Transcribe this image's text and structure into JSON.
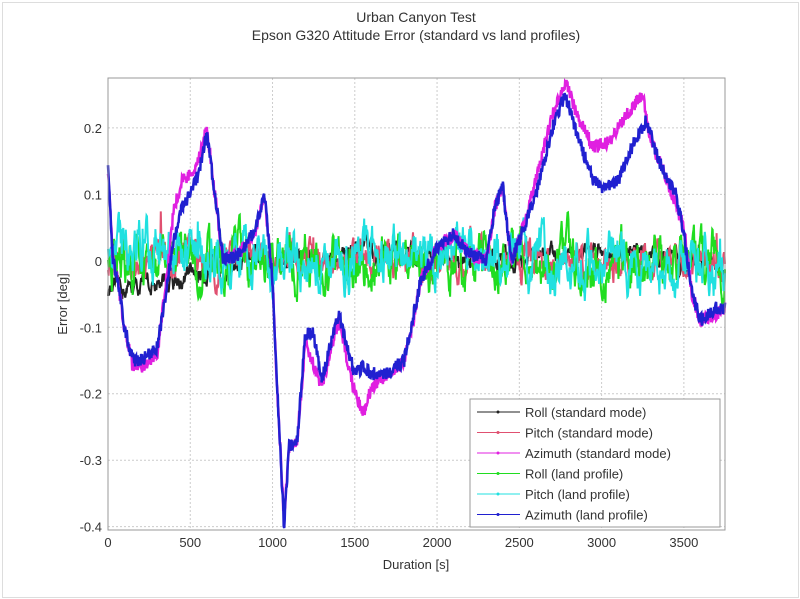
{
  "chart_data": {
    "type": "line",
    "title": "Urban Canyon Test",
    "subtitle": "Epson G320 Attitude Error (standard vs land profiles)",
    "xlabel": "Duration [s]",
    "ylabel": "Error [deg]",
    "xlim": [
      0,
      3750
    ],
    "ylim": [
      -0.405,
      0.275
    ],
    "xticks": [
      0,
      500,
      1000,
      1500,
      2000,
      2500,
      3000,
      3500
    ],
    "yticks": [
      -0.4,
      -0.3,
      -0.2,
      -0.1,
      0,
      0.1,
      0.2
    ],
    "ytick_labels": [
      "-0.4",
      "-0.3",
      "-0.2",
      "-0.1",
      "0",
      "0.1",
      "0.2"
    ],
    "grid": true,
    "legend_position": "bottom-right",
    "series": [
      {
        "name": "Roll (standard mode)",
        "color": "#222222",
        "kind": "noise",
        "base": [
          [
            0,
            -0.045
          ],
          [
            400,
            -0.03
          ],
          [
            800,
            0.0
          ],
          [
            1500,
            0.01
          ],
          [
            2500,
            0.0
          ],
          [
            3000,
            0.02
          ],
          [
            3500,
            0.0
          ],
          [
            3750,
            -0.01
          ]
        ],
        "amp": 0.012
      },
      {
        "name": "Pitch (standard mode)",
        "color": "#e05070",
        "kind": "noise",
        "base": [
          [
            0,
            0.0
          ],
          [
            3750,
            0.0
          ]
        ],
        "amp": 0.02
      },
      {
        "name": "Azimuth (standard mode)",
        "color": "#e020e0",
        "kind": "keypoints",
        "points": [
          [
            0,
            0.14
          ],
          [
            30,
            0.0
          ],
          [
            60,
            -0.03
          ],
          [
            100,
            -0.1
          ],
          [
            150,
            -0.16
          ],
          [
            200,
            -0.16
          ],
          [
            300,
            -0.14
          ],
          [
            350,
            -0.04
          ],
          [
            400,
            0.08
          ],
          [
            450,
            0.12
          ],
          [
            500,
            0.13
          ],
          [
            550,
            0.15
          ],
          [
            600,
            0.2
          ],
          [
            650,
            0.1
          ],
          [
            700,
            0.0
          ],
          [
            800,
            0.01
          ],
          [
            900,
            0.05
          ],
          [
            950,
            0.1
          ],
          [
            1000,
            -0.03
          ],
          [
            1030,
            -0.2
          ],
          [
            1070,
            -0.39
          ],
          [
            1100,
            -0.28
          ],
          [
            1150,
            -0.27
          ],
          [
            1200,
            -0.12
          ],
          [
            1250,
            -0.16
          ],
          [
            1300,
            -0.19
          ],
          [
            1400,
            -0.09
          ],
          [
            1500,
            -0.2
          ],
          [
            1550,
            -0.23
          ],
          [
            1600,
            -0.19
          ],
          [
            1700,
            -0.17
          ],
          [
            1800,
            -0.15
          ],
          [
            1850,
            -0.1
          ],
          [
            1900,
            -0.03
          ],
          [
            2000,
            0.02
          ],
          [
            2100,
            0.04
          ],
          [
            2200,
            0.01
          ],
          [
            2300,
            0.0
          ],
          [
            2350,
            0.08
          ],
          [
            2400,
            0.11
          ],
          [
            2450,
            0.0
          ],
          [
            2500,
            0.03
          ],
          [
            2600,
            0.12
          ],
          [
            2700,
            0.22
          ],
          [
            2780,
            0.27
          ],
          [
            2850,
            0.22
          ],
          [
            2950,
            0.17
          ],
          [
            3050,
            0.18
          ],
          [
            3150,
            0.22
          ],
          [
            3250,
            0.25
          ],
          [
            3300,
            0.18
          ],
          [
            3400,
            0.12
          ],
          [
            3500,
            0.05
          ],
          [
            3550,
            -0.05
          ],
          [
            3600,
            -0.09
          ],
          [
            3700,
            -0.08
          ],
          [
            3750,
            -0.07
          ]
        ]
      },
      {
        "name": "Roll (land profile)",
        "color": "#20dd20",
        "kind": "noise",
        "base": [
          [
            0,
            0.0
          ],
          [
            3750,
            0.0
          ]
        ],
        "amp": 0.03
      },
      {
        "name": "Pitch (land profile)",
        "color": "#20e0e0",
        "kind": "noise",
        "base": [
          [
            0,
            0.02
          ],
          [
            1000,
            0.0
          ],
          [
            2000,
            0.01
          ],
          [
            3750,
            -0.01
          ]
        ],
        "amp": 0.03
      },
      {
        "name": "Azimuth (land profile)",
        "color": "#2020d0",
        "kind": "keypoints",
        "points": [
          [
            0,
            0.14
          ],
          [
            30,
            0.0
          ],
          [
            60,
            -0.03
          ],
          [
            100,
            -0.1
          ],
          [
            150,
            -0.15
          ],
          [
            200,
            -0.15
          ],
          [
            300,
            -0.13
          ],
          [
            350,
            -0.05
          ],
          [
            400,
            0.03
          ],
          [
            450,
            0.08
          ],
          [
            500,
            0.1
          ],
          [
            550,
            0.13
          ],
          [
            600,
            0.19
          ],
          [
            650,
            0.1
          ],
          [
            700,
            0.0
          ],
          [
            800,
            0.01
          ],
          [
            900,
            0.05
          ],
          [
            950,
            0.1
          ],
          [
            1000,
            -0.03
          ],
          [
            1030,
            -0.2
          ],
          [
            1070,
            -0.4
          ],
          [
            1100,
            -0.28
          ],
          [
            1150,
            -0.27
          ],
          [
            1200,
            -0.11
          ],
          [
            1250,
            -0.11
          ],
          [
            1300,
            -0.18
          ],
          [
            1400,
            -0.08
          ],
          [
            1500,
            -0.17
          ],
          [
            1550,
            -0.16
          ],
          [
            1600,
            -0.17
          ],
          [
            1700,
            -0.17
          ],
          [
            1800,
            -0.15
          ],
          [
            1850,
            -0.09
          ],
          [
            1900,
            -0.03
          ],
          [
            2000,
            0.02
          ],
          [
            2100,
            0.04
          ],
          [
            2200,
            0.01
          ],
          [
            2300,
            0.0
          ],
          [
            2350,
            0.08
          ],
          [
            2400,
            0.11
          ],
          [
            2450,
            0.0
          ],
          [
            2500,
            0.03
          ],
          [
            2600,
            0.1
          ],
          [
            2700,
            0.2
          ],
          [
            2780,
            0.25
          ],
          [
            2850,
            0.19
          ],
          [
            2950,
            0.12
          ],
          [
            3000,
            0.11
          ],
          [
            3100,
            0.12
          ],
          [
            3200,
            0.18
          ],
          [
            3270,
            0.21
          ],
          [
            3350,
            0.15
          ],
          [
            3450,
            0.1
          ],
          [
            3500,
            0.04
          ],
          [
            3550,
            -0.05
          ],
          [
            3600,
            -0.09
          ],
          [
            3700,
            -0.07
          ],
          [
            3750,
            -0.07
          ]
        ]
      }
    ]
  }
}
